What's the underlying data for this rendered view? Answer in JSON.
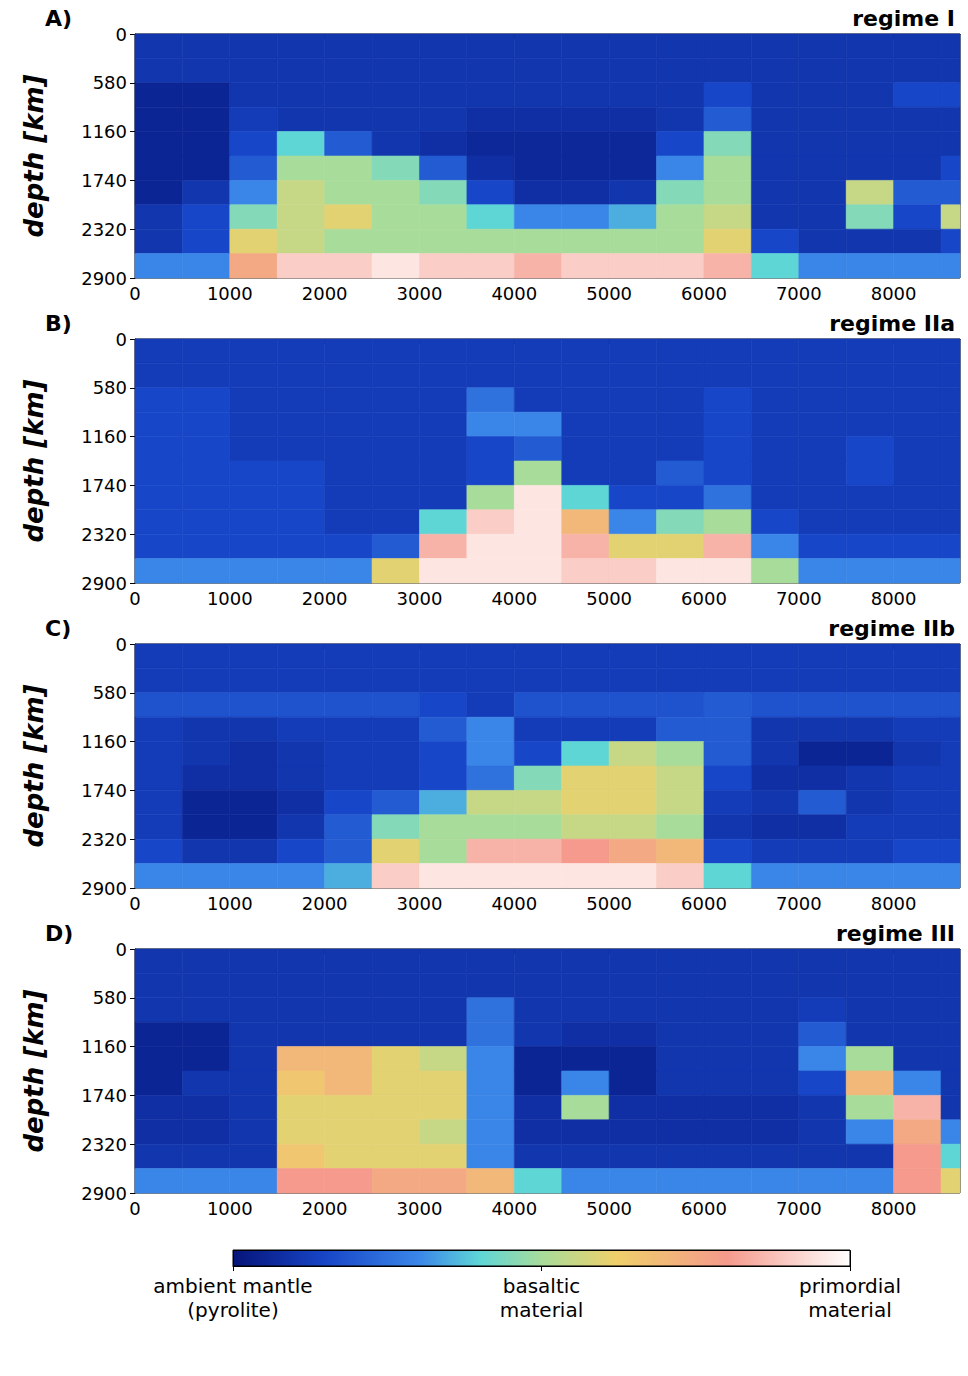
{
  "chart_data": [
    {
      "type": "heatmap",
      "panel": "A)",
      "title": "regime I",
      "ylabel": "depth [km]",
      "x_bins": [
        0,
        500,
        1000,
        1500,
        2000,
        2500,
        3000,
        3500,
        4000,
        4500,
        5000,
        5500,
        6000,
        6500,
        7000,
        7500,
        8000,
        8500,
        8700
      ],
      "y_bins": [
        0,
        290,
        580,
        870,
        1160,
        1450,
        1740,
        2030,
        2320,
        2610,
        2900
      ],
      "cells": [
        [
          0.1,
          0.1,
          0.1,
          0.1,
          0.1,
          0.1,
          0.1,
          0.1,
          0.1,
          0.1,
          0.1,
          0.1,
          0.1,
          0.1,
          0.1,
          0.1,
          0.1,
          0.1
        ],
        [
          0.1,
          0.1,
          0.1,
          0.1,
          0.1,
          0.1,
          0.1,
          0.1,
          0.1,
          0.1,
          0.1,
          0.1,
          0.1,
          0.1,
          0.1,
          0.1,
          0.1,
          0.1
        ],
        [
          0.05,
          0.05,
          0.1,
          0.1,
          0.1,
          0.1,
          0.1,
          0.1,
          0.1,
          0.1,
          0.1,
          0.1,
          0.15,
          0.1,
          0.1,
          0.1,
          0.15,
          0.15
        ],
        [
          0.05,
          0.05,
          0.12,
          0.1,
          0.1,
          0.1,
          0.1,
          0.08,
          0.08,
          0.08,
          0.08,
          0.1,
          0.2,
          0.1,
          0.1,
          0.1,
          0.1,
          0.1
        ],
        [
          0.05,
          0.05,
          0.15,
          0.4,
          0.2,
          0.1,
          0.08,
          0.06,
          0.06,
          0.06,
          0.06,
          0.15,
          0.45,
          0.1,
          0.1,
          0.1,
          0.1,
          0.1
        ],
        [
          0.05,
          0.05,
          0.2,
          0.5,
          0.5,
          0.45,
          0.2,
          0.08,
          0.06,
          0.06,
          0.06,
          0.3,
          0.5,
          0.1,
          0.1,
          0.1,
          0.1,
          0.15
        ],
        [
          0.05,
          0.1,
          0.3,
          0.55,
          0.5,
          0.5,
          0.45,
          0.15,
          0.08,
          0.08,
          0.1,
          0.45,
          0.5,
          0.1,
          0.1,
          0.55,
          0.2,
          0.2
        ],
        [
          0.1,
          0.15,
          0.45,
          0.55,
          0.6,
          0.5,
          0.5,
          0.4,
          0.3,
          0.3,
          0.35,
          0.5,
          0.55,
          0.1,
          0.1,
          0.45,
          0.15,
          0.55
        ],
        [
          0.1,
          0.15,
          0.6,
          0.55,
          0.5,
          0.5,
          0.5,
          0.5,
          0.5,
          0.5,
          0.5,
          0.5,
          0.6,
          0.15,
          0.1,
          0.1,
          0.1,
          0.15
        ],
        [
          0.3,
          0.3,
          0.75,
          0.9,
          0.9,
          0.95,
          0.9,
          0.9,
          0.85,
          0.9,
          0.9,
          0.9,
          0.85,
          0.4,
          0.3,
          0.3,
          0.3,
          0.3
        ]
      ],
      "xlim": [
        0,
        8700
      ],
      "xticks": [
        0,
        1000,
        2000,
        3000,
        4000,
        5000,
        6000,
        7000,
        8000
      ],
      "ylim": [
        0,
        2900
      ],
      "yticks": [
        0,
        580,
        1160,
        1740,
        2320,
        2900
      ],
      "grid": false
    },
    {
      "type": "heatmap",
      "panel": "B)",
      "title": "regime IIa",
      "ylabel": "depth [km]",
      "x_bins": [
        0,
        500,
        1000,
        1500,
        2000,
        2500,
        3000,
        3500,
        4000,
        4500,
        5000,
        5500,
        6000,
        6500,
        7000,
        7500,
        8000,
        8500,
        8700
      ],
      "y_bins": [
        0,
        290,
        580,
        870,
        1160,
        1450,
        1740,
        2030,
        2320,
        2610,
        2900
      ],
      "cells": [
        [
          0.12,
          0.12,
          0.12,
          0.12,
          0.12,
          0.12,
          0.12,
          0.12,
          0.12,
          0.12,
          0.12,
          0.12,
          0.12,
          0.12,
          0.12,
          0.12,
          0.12,
          0.12
        ],
        [
          0.12,
          0.12,
          0.12,
          0.12,
          0.12,
          0.12,
          0.12,
          0.12,
          0.12,
          0.12,
          0.12,
          0.12,
          0.12,
          0.12,
          0.12,
          0.12,
          0.12,
          0.12
        ],
        [
          0.15,
          0.15,
          0.12,
          0.12,
          0.12,
          0.12,
          0.12,
          0.25,
          0.12,
          0.12,
          0.12,
          0.12,
          0.15,
          0.12,
          0.12,
          0.12,
          0.12,
          0.12
        ],
        [
          0.15,
          0.15,
          0.12,
          0.12,
          0.12,
          0.12,
          0.12,
          0.3,
          0.3,
          0.12,
          0.12,
          0.12,
          0.15,
          0.12,
          0.12,
          0.12,
          0.12,
          0.12
        ],
        [
          0.15,
          0.15,
          0.12,
          0.12,
          0.12,
          0.12,
          0.12,
          0.15,
          0.2,
          0.12,
          0.12,
          0.12,
          0.15,
          0.12,
          0.12,
          0.15,
          0.12,
          0.12
        ],
        [
          0.15,
          0.15,
          0.15,
          0.15,
          0.12,
          0.12,
          0.12,
          0.15,
          0.5,
          0.12,
          0.12,
          0.2,
          0.15,
          0.12,
          0.12,
          0.15,
          0.12,
          0.12
        ],
        [
          0.15,
          0.15,
          0.15,
          0.15,
          0.12,
          0.12,
          0.12,
          0.5,
          0.95,
          0.4,
          0.15,
          0.15,
          0.25,
          0.12,
          0.12,
          0.12,
          0.12,
          0.12
        ],
        [
          0.15,
          0.15,
          0.15,
          0.15,
          0.12,
          0.12,
          0.4,
          0.9,
          0.95,
          0.7,
          0.3,
          0.45,
          0.5,
          0.15,
          0.12,
          0.12,
          0.12,
          0.12
        ],
        [
          0.15,
          0.15,
          0.15,
          0.15,
          0.15,
          0.2,
          0.85,
          0.95,
          0.95,
          0.85,
          0.6,
          0.6,
          0.85,
          0.3,
          0.15,
          0.15,
          0.15,
          0.15
        ],
        [
          0.3,
          0.3,
          0.3,
          0.3,
          0.3,
          0.6,
          0.95,
          0.95,
          0.95,
          0.9,
          0.9,
          0.95,
          0.95,
          0.5,
          0.3,
          0.3,
          0.3,
          0.3
        ]
      ],
      "xlim": [
        0,
        8700
      ],
      "xticks": [
        0,
        1000,
        2000,
        3000,
        4000,
        5000,
        6000,
        7000,
        8000
      ],
      "ylim": [
        0,
        2900
      ],
      "yticks": [
        0,
        580,
        1160,
        1740,
        2320,
        2900
      ],
      "grid": false
    },
    {
      "type": "heatmap",
      "panel": "C)",
      "title": "regime IIb",
      "ylabel": "depth [km]",
      "x_bins": [
        0,
        500,
        1000,
        1500,
        2000,
        2500,
        3000,
        3500,
        4000,
        4500,
        5000,
        5500,
        6000,
        6500,
        7000,
        7500,
        8000,
        8500,
        8700
      ],
      "y_bins": [
        0,
        290,
        580,
        870,
        1160,
        1450,
        1740,
        2030,
        2320,
        2610,
        2900
      ],
      "cells": [
        [
          0.12,
          0.12,
          0.12,
          0.12,
          0.12,
          0.12,
          0.12,
          0.12,
          0.12,
          0.12,
          0.12,
          0.12,
          0.12,
          0.12,
          0.12,
          0.12,
          0.12,
          0.12
        ],
        [
          0.12,
          0.12,
          0.12,
          0.12,
          0.12,
          0.12,
          0.12,
          0.12,
          0.12,
          0.12,
          0.12,
          0.12,
          0.12,
          0.12,
          0.12,
          0.12,
          0.12,
          0.12
        ],
        [
          0.18,
          0.18,
          0.18,
          0.18,
          0.18,
          0.18,
          0.15,
          0.12,
          0.18,
          0.18,
          0.18,
          0.18,
          0.2,
          0.18,
          0.18,
          0.18,
          0.18,
          0.18
        ],
        [
          0.12,
          0.1,
          0.1,
          0.12,
          0.12,
          0.12,
          0.2,
          0.3,
          0.12,
          0.12,
          0.12,
          0.2,
          0.2,
          0.1,
          0.1,
          0.1,
          0.12,
          0.12
        ],
        [
          0.12,
          0.1,
          0.08,
          0.1,
          0.12,
          0.12,
          0.15,
          0.3,
          0.15,
          0.4,
          0.55,
          0.5,
          0.2,
          0.1,
          0.05,
          0.05,
          0.1,
          0.12
        ],
        [
          0.12,
          0.08,
          0.08,
          0.1,
          0.12,
          0.12,
          0.15,
          0.25,
          0.45,
          0.6,
          0.6,
          0.55,
          0.15,
          0.08,
          0.08,
          0.1,
          0.12,
          0.12
        ],
        [
          0.12,
          0.05,
          0.05,
          0.08,
          0.15,
          0.2,
          0.35,
          0.55,
          0.55,
          0.6,
          0.6,
          0.55,
          0.12,
          0.1,
          0.2,
          0.1,
          0.12,
          0.12
        ],
        [
          0.12,
          0.05,
          0.05,
          0.1,
          0.2,
          0.45,
          0.5,
          0.5,
          0.5,
          0.55,
          0.55,
          0.5,
          0.1,
          0.08,
          0.08,
          0.12,
          0.12,
          0.12
        ],
        [
          0.15,
          0.1,
          0.1,
          0.15,
          0.2,
          0.6,
          0.5,
          0.85,
          0.85,
          0.8,
          0.75,
          0.7,
          0.15,
          0.12,
          0.12,
          0.12,
          0.15,
          0.15
        ],
        [
          0.3,
          0.3,
          0.3,
          0.3,
          0.35,
          0.9,
          0.95,
          0.95,
          0.95,
          0.95,
          0.95,
          0.9,
          0.4,
          0.3,
          0.3,
          0.3,
          0.3,
          0.3
        ]
      ],
      "xlim": [
        0,
        8700
      ],
      "xticks": [
        0,
        1000,
        2000,
        3000,
        4000,
        5000,
        6000,
        7000,
        8000
      ],
      "ylim": [
        0,
        2900
      ],
      "yticks": [
        0,
        580,
        1160,
        1740,
        2320,
        2900
      ],
      "grid": false
    },
    {
      "type": "heatmap",
      "panel": "D)",
      "title": "regime III",
      "ylabel": "depth [km]",
      "x_bins": [
        0,
        500,
        1000,
        1500,
        2000,
        2500,
        3000,
        3500,
        4000,
        4500,
        5000,
        5500,
        6000,
        6500,
        7000,
        7500,
        8000,
        8500,
        8700
      ],
      "y_bins": [
        0,
        290,
        580,
        870,
        1160,
        1450,
        1740,
        2030,
        2320,
        2610,
        2900
      ],
      "cells": [
        [
          0.1,
          0.1,
          0.1,
          0.1,
          0.1,
          0.1,
          0.1,
          0.1,
          0.1,
          0.1,
          0.1,
          0.1,
          0.1,
          0.1,
          0.1,
          0.1,
          0.1,
          0.1
        ],
        [
          0.1,
          0.1,
          0.1,
          0.1,
          0.1,
          0.1,
          0.1,
          0.1,
          0.1,
          0.1,
          0.1,
          0.1,
          0.1,
          0.1,
          0.1,
          0.1,
          0.1,
          0.1
        ],
        [
          0.1,
          0.1,
          0.1,
          0.1,
          0.1,
          0.1,
          0.1,
          0.25,
          0.1,
          0.1,
          0.1,
          0.1,
          0.1,
          0.1,
          0.12,
          0.1,
          0.1,
          0.1
        ],
        [
          0.05,
          0.05,
          0.1,
          0.1,
          0.1,
          0.1,
          0.1,
          0.25,
          0.1,
          0.08,
          0.08,
          0.1,
          0.1,
          0.1,
          0.2,
          0.1,
          0.1,
          0.1
        ],
        [
          0.05,
          0.05,
          0.1,
          0.7,
          0.7,
          0.6,
          0.55,
          0.3,
          0.05,
          0.05,
          0.05,
          0.1,
          0.1,
          0.1,
          0.3,
          0.5,
          0.1,
          0.1
        ],
        [
          0.05,
          0.1,
          0.1,
          0.65,
          0.7,
          0.6,
          0.6,
          0.3,
          0.05,
          0.3,
          0.05,
          0.1,
          0.1,
          0.1,
          0.15,
          0.7,
          0.3,
          0.1
        ],
        [
          0.08,
          0.08,
          0.1,
          0.6,
          0.6,
          0.6,
          0.6,
          0.3,
          0.08,
          0.5,
          0.08,
          0.08,
          0.08,
          0.08,
          0.1,
          0.5,
          0.85,
          0.1
        ],
        [
          0.08,
          0.08,
          0.1,
          0.6,
          0.6,
          0.6,
          0.55,
          0.3,
          0.08,
          0.08,
          0.08,
          0.08,
          0.08,
          0.08,
          0.1,
          0.3,
          0.75,
          0.3
        ],
        [
          0.1,
          0.1,
          0.1,
          0.65,
          0.6,
          0.6,
          0.6,
          0.3,
          0.1,
          0.1,
          0.1,
          0.1,
          0.1,
          0.1,
          0.1,
          0.1,
          0.8,
          0.4
        ],
        [
          0.3,
          0.3,
          0.3,
          0.8,
          0.8,
          0.75,
          0.75,
          0.7,
          0.4,
          0.3,
          0.3,
          0.3,
          0.3,
          0.3,
          0.3,
          0.3,
          0.8,
          0.6
        ]
      ],
      "xlim": [
        0,
        8700
      ],
      "xticks": [
        0,
        1000,
        2000,
        3000,
        4000,
        5000,
        6000,
        7000,
        8000
      ],
      "ylim": [
        0,
        2900
      ],
      "yticks": [
        0,
        580,
        1160,
        1740,
        2320,
        2900
      ],
      "grid": false
    }
  ],
  "colorbar": {
    "range": [
      0,
      1
    ],
    "ticks": [
      {
        "value": 0,
        "label": "ambient mantle (pyrolite)"
      },
      {
        "value": 0.5,
        "label": "basaltic material"
      },
      {
        "value": 1,
        "label": "primordial material"
      }
    ]
  }
}
